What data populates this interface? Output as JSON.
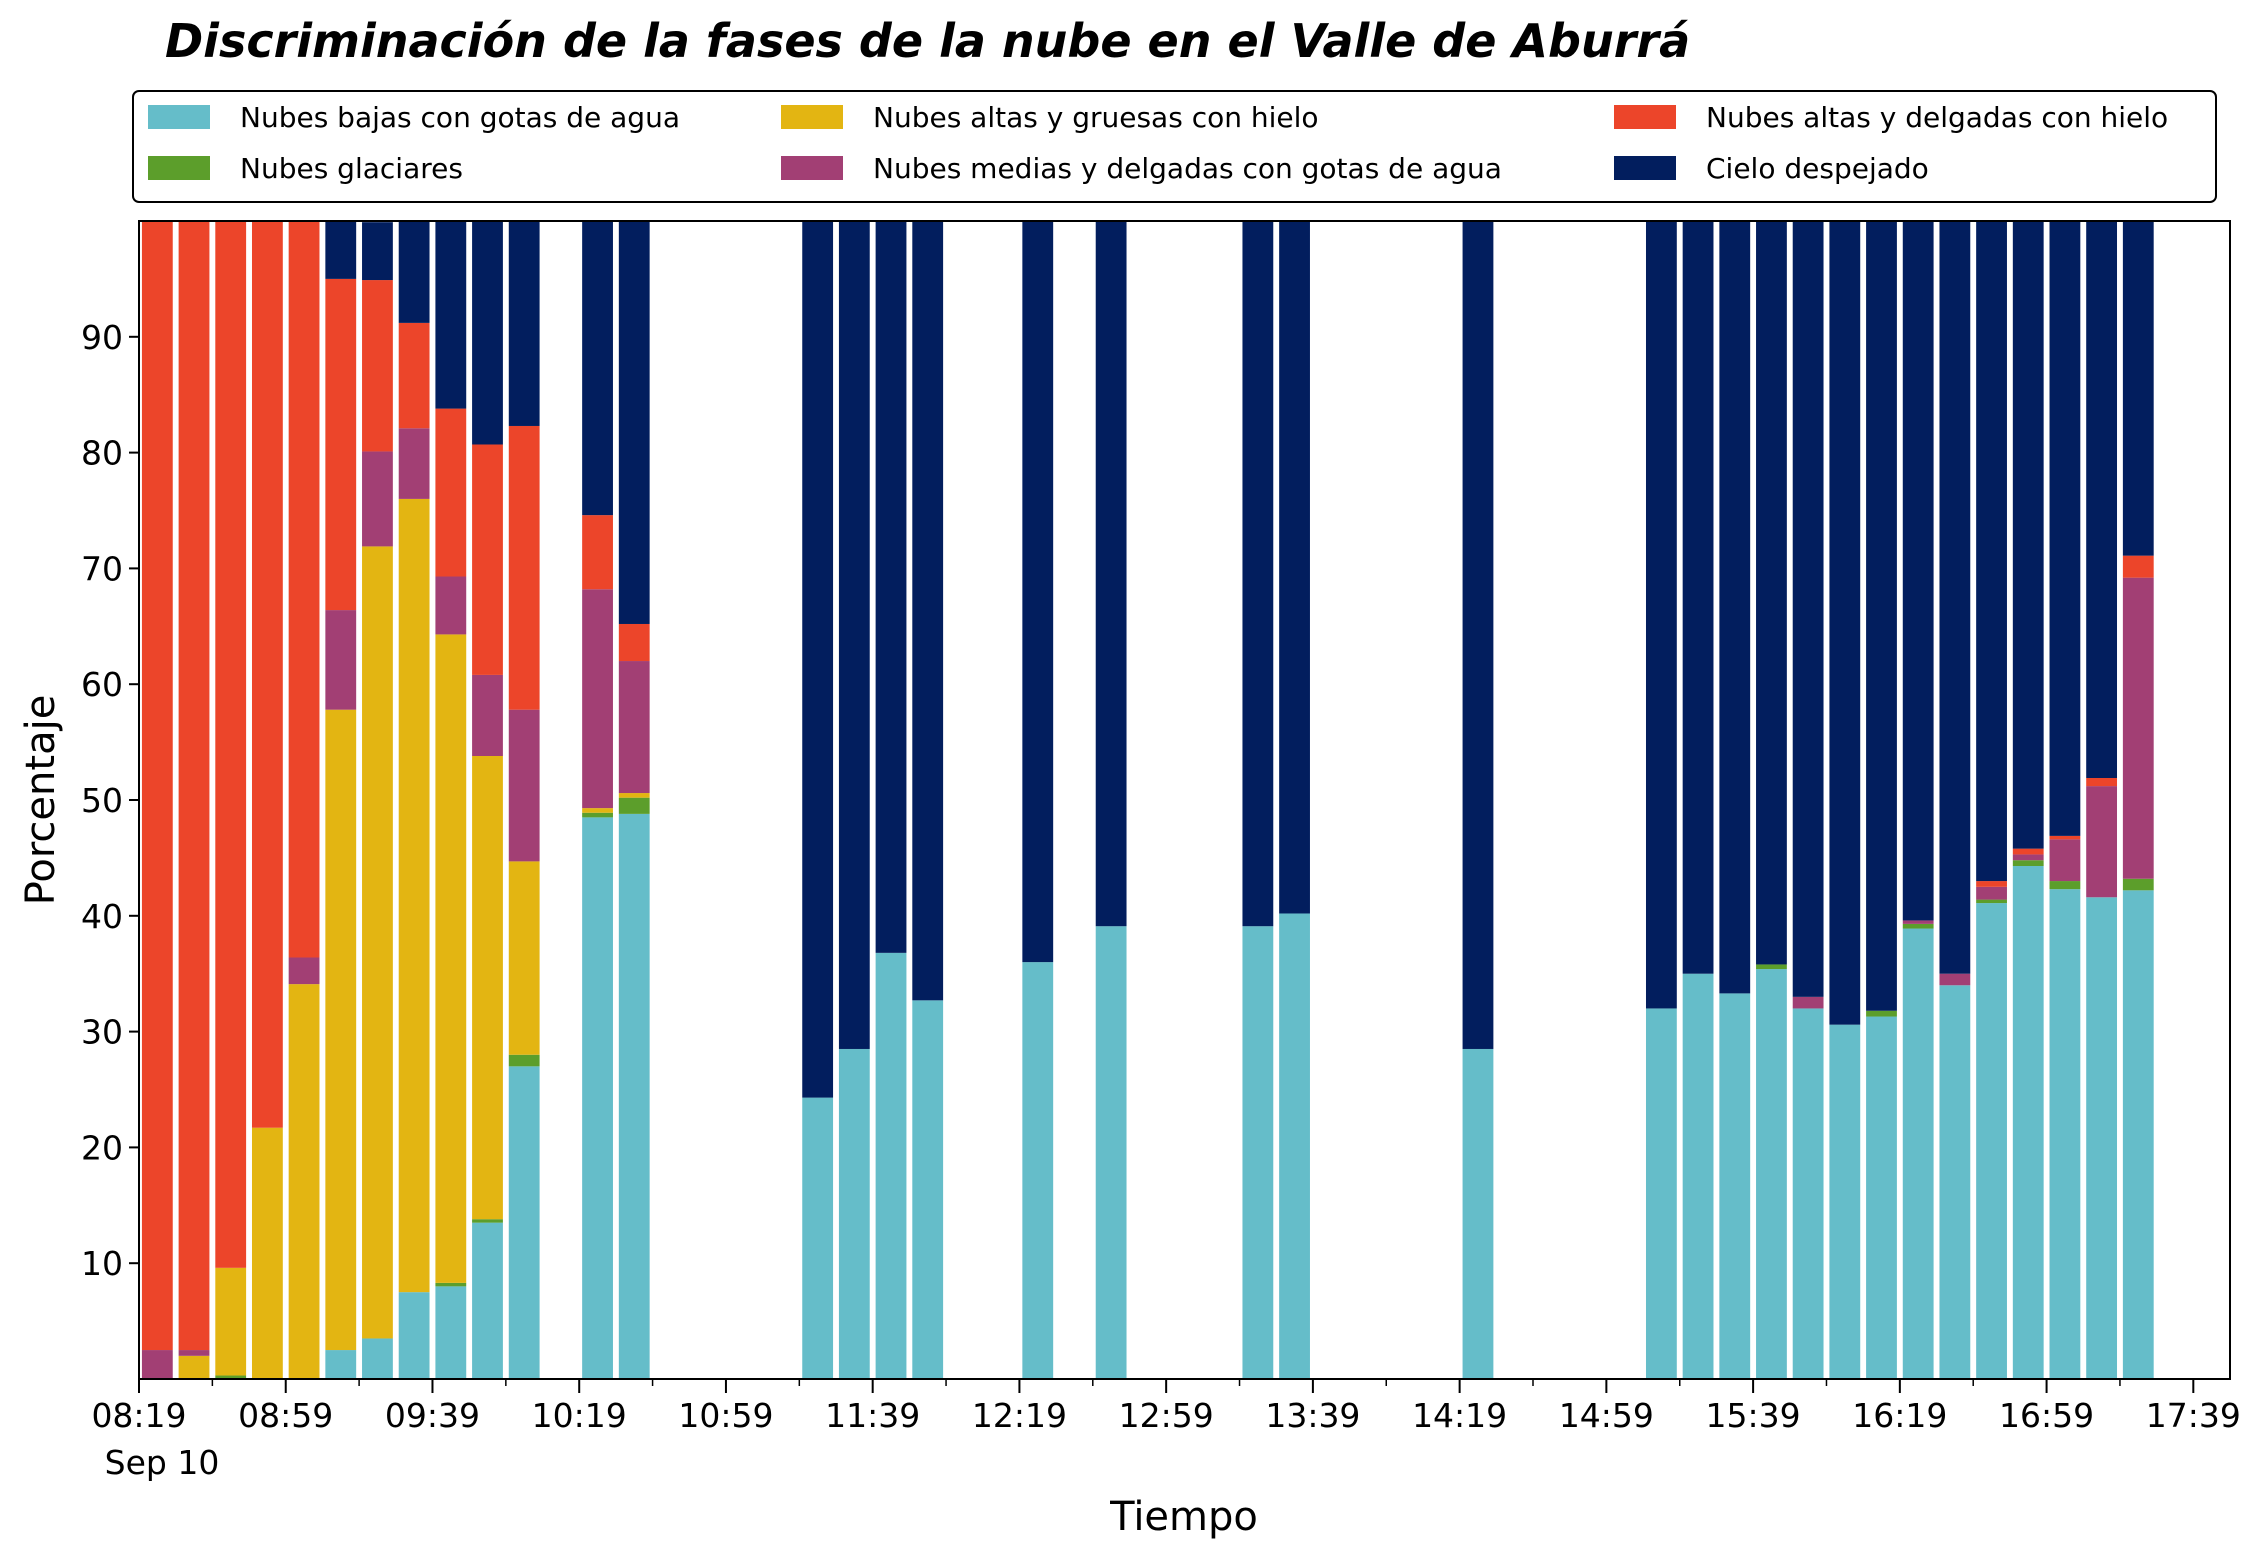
{
  "chart_data": {
    "type": "bar",
    "stacked": true,
    "title": "Discriminación de la fases de la nube en el Valle de Aburrá",
    "xlabel": "Tiempo",
    "ylabel": "Porcentaje",
    "ylim": [
      0,
      100
    ],
    "yticks": [
      10,
      20,
      30,
      40,
      50,
      60,
      70,
      80,
      90
    ],
    "xticks": [
      "08:19",
      "08:59",
      "09:39",
      "10:19",
      "10:59",
      "11:39",
      "12:19",
      "12:59",
      "13:39",
      "14:19",
      "14:59",
      "15:39",
      "16:19",
      "16:59",
      "17:39"
    ],
    "x_date_label": "Sep 10",
    "x_start_minute": 499,
    "x_end_minute": 1069,
    "grid": false,
    "legend_position": "top",
    "x": [
      "08:19",
      "08:29",
      "08:39",
      "08:49",
      "08:59",
      "09:09",
      "09:19",
      "09:29",
      "09:39",
      "09:49",
      "09:59",
      "10:19",
      "10:29",
      "11:19",
      "11:29",
      "11:39",
      "11:49",
      "12:19",
      "12:39",
      "13:19",
      "13:29",
      "14:19",
      "15:09",
      "15:19",
      "15:29",
      "15:39",
      "15:49",
      "15:59",
      "16:09",
      "16:19",
      "16:29",
      "16:39",
      "16:49",
      "16:59",
      "17:09",
      "17:19"
    ],
    "series": [
      {
        "name": "Nubes bajas con gotas de agua",
        "color": "#65BDC9",
        "values": [
          0,
          0,
          0,
          0,
          0,
          2.5,
          3.5,
          7.5,
          8,
          13.5,
          27,
          48.5,
          48.8,
          24.3,
          28.5,
          36.8,
          32.7,
          36,
          39.1,
          39.1,
          40.2,
          28.5,
          32,
          35,
          33.3,
          35.4,
          32,
          30.6,
          31.3,
          38.9,
          34,
          41.1,
          44.3,
          42.3,
          41.6,
          42.2
        ]
      },
      {
        "name": "Nubes glaciares",
        "color": "#5C9E2B",
        "values": [
          0,
          0,
          0.3,
          0,
          0,
          0,
          0,
          0,
          0.3,
          0.3,
          1,
          0.4,
          1.4,
          0,
          0,
          0,
          0,
          0,
          0,
          0,
          0,
          0,
          0,
          0,
          0,
          0.4,
          0,
          0,
          0.5,
          0.4,
          0,
          0.3,
          0.5,
          0.7,
          0,
          1
        ]
      },
      {
        "name": "Nubes altas y gruesas con hielo",
        "color": "#E3B512",
        "values": [
          0,
          2,
          9.3,
          21.7,
          34.1,
          55.3,
          68.4,
          68.5,
          56,
          40,
          16.7,
          0.4,
          0.4,
          0,
          0,
          0,
          0,
          0,
          0,
          0,
          0,
          0,
          0,
          0,
          0,
          0,
          0,
          0,
          0,
          0,
          0,
          0,
          0,
          0,
          0,
          0
        ]
      },
      {
        "name": "Nubes medias y delgadas con gotas de agua",
        "color": "#A23F74",
        "values": [
          2.5,
          0.5,
          0,
          0,
          2.3,
          8.6,
          8.2,
          6.1,
          5,
          7,
          13.1,
          18.9,
          11.4,
          0,
          0,
          0,
          0,
          0,
          0,
          0,
          0,
          0,
          0,
          0,
          0,
          0,
          1,
          0,
          0,
          0.3,
          1,
          1.1,
          0.5,
          3.6,
          9.6,
          26
        ]
      },
      {
        "name": "Nubes altas y delgadas con hielo",
        "color": "#EC452A",
        "values": [
          97.5,
          97.5,
          90.4,
          78.3,
          63.6,
          28.6,
          14.8,
          9.1,
          14.5,
          19.9,
          24.5,
          6.4,
          3.2,
          0,
          0,
          0,
          0,
          0,
          0,
          0,
          0,
          0,
          0,
          0,
          0,
          0,
          0,
          0,
          0,
          0,
          0,
          0.5,
          0.5,
          0.3,
          0.7,
          1.9
        ]
      },
      {
        "name": "Cielo despejado",
        "color": "#021E5E",
        "values": [
          0,
          0,
          0,
          0,
          0,
          5,
          5,
          8.8,
          16.2,
          19.3,
          17.7,
          25.4,
          34.8,
          75.7,
          71.5,
          63.2,
          67.3,
          64,
          60.9,
          60.9,
          59.8,
          71.5,
          68,
          65,
          66.7,
          64.2,
          67,
          69.4,
          68.2,
          60.4,
          65,
          57,
          54.2,
          53.1,
          48.1,
          28.9
        ]
      }
    ]
  }
}
